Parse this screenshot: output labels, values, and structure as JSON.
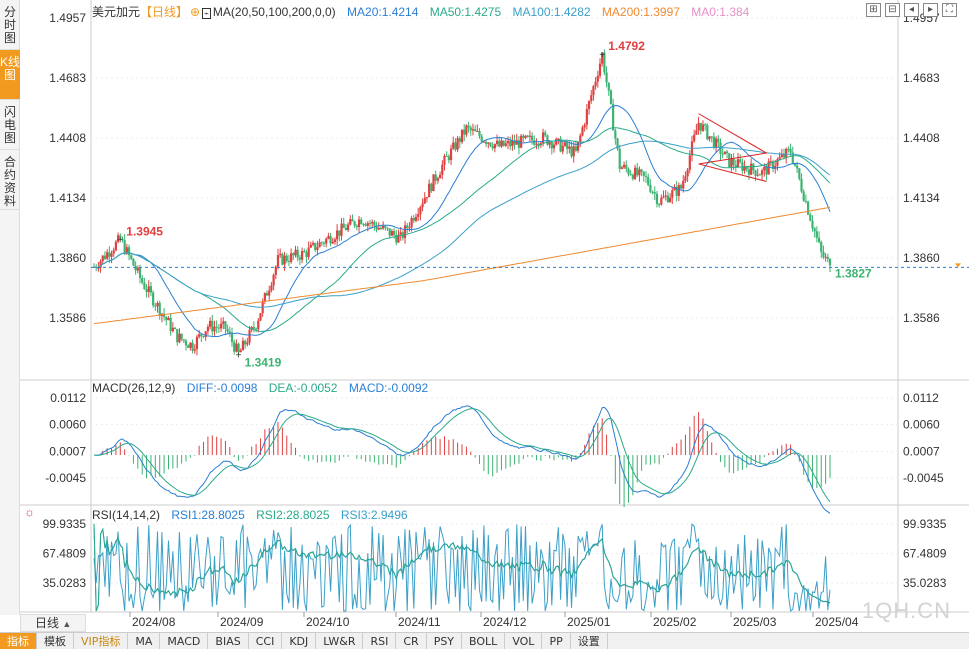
{
  "sidebar": {
    "tabs": [
      {
        "label": "分时图",
        "active": false
      },
      {
        "label": "K线图",
        "active": true
      },
      {
        "label": "闪电图",
        "active": false
      },
      {
        "label": "合约资料",
        "active": false
      }
    ]
  },
  "main_legend": {
    "symbol": "美元加元",
    "period": "【日线】",
    "ma_label": "MA(20,50,100,200,0,0)",
    "ma20": "MA20:1.4214",
    "ma50": "MA50:1.4275",
    "ma100": "MA100:1.4282",
    "ma200": "MA200:1.3997",
    "ma0": "MA0:1.384"
  },
  "macd_legend": {
    "label": "MACD(26,12,9)",
    "diff": "DIFF:-0.0098",
    "dea": "DEA:-0.0052",
    "macd": "MACD:-0.0092"
  },
  "rsi_legend": {
    "label": "RSI(14,14,2)",
    "rsi1": "RSI1:28.8025",
    "rsi2": "RSI2:28.8025",
    "rsi3": "RSI3:2.9496"
  },
  "price_axis": [
    "1.4957",
    "1.4683",
    "1.4408",
    "1.4134",
    "1.3860",
    "1.3586"
  ],
  "macd_axis": [
    "0.0112",
    "0.0060",
    "0.0007",
    "-0.0045"
  ],
  "rsi_axis": [
    "99.9335",
    "67.4809",
    "35.0283"
  ],
  "x_axis": [
    "2024/08",
    "2024/09",
    "2024/10",
    "2024/11",
    "2024/12",
    "2025/01",
    "2025/02",
    "2025/03",
    "2025/04"
  ],
  "annotations": {
    "high": "1.4792",
    "low": "1.3419",
    "local_high": "1.3945",
    "last": "1.3827"
  },
  "period_button": "日线",
  "bottom_tabs": [
    "指标",
    "模板",
    "VIP指标",
    "MA",
    "MACD",
    "BIAS",
    "CCI",
    "KDJ",
    "LW&R",
    "RSI",
    "CR",
    "PSY",
    "BOLL",
    "VOL",
    "PP",
    "设置"
  ],
  "watermark": "1QH.CN",
  "colors": {
    "up": "#e04040",
    "down": "#3cb371",
    "ma20": "#2a7fd4",
    "ma50": "#2aaa8a",
    "ma100": "#3aa0c8",
    "ma200": "#f08a30",
    "ma0": "#e890c8",
    "accent": "#f29a1f"
  },
  "chart_data": {
    "type": "candlestick",
    "price_range": [
      1.335,
      1.505
    ],
    "key_prices": {
      "high": 1.4792,
      "low": 1.3419,
      "last": 1.3827
    }
  }
}
